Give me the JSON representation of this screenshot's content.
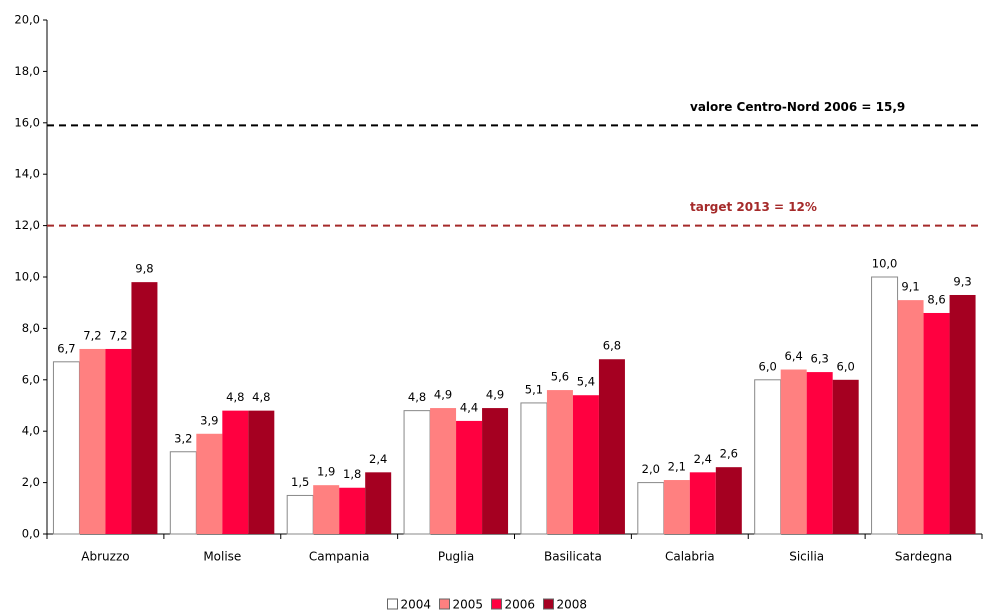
{
  "chart_data": {
    "type": "bar",
    "categories": [
      "Abruzzo",
      "Molise",
      "Campania",
      "Puglia",
      "Basilicata",
      "Calabria",
      "Sicilia",
      "Sardegna"
    ],
    "series": [
      {
        "name": "2004",
        "color": "#ffffff",
        "values": [
          6.7,
          3.2,
          1.5,
          4.8,
          5.1,
          2.0,
          6.0,
          10.0
        ],
        "value_labels": [
          "6,7",
          "3,2",
          "1,5",
          "4,8",
          "5,1",
          "2,0",
          "6,0",
          "10,0"
        ]
      },
      {
        "name": "2005",
        "color": "#ff8080",
        "values": [
          7.2,
          3.9,
          1.9,
          4.9,
          5.6,
          2.1,
          6.4,
          9.1
        ],
        "value_labels": [
          "7,2",
          "3,9",
          "1,9",
          "4,9",
          "5,6",
          "2,1",
          "6,4",
          "9,1"
        ]
      },
      {
        "name": "2006",
        "color": "#ff0040",
        "values": [
          7.2,
          4.8,
          1.8,
          4.4,
          5.4,
          2.4,
          6.3,
          8.6
        ],
        "value_labels": [
          "7,2",
          "4,8",
          "1,8",
          "4,4",
          "5,4",
          "2,4",
          "6,3",
          "8,6"
        ]
      },
      {
        "name": "2008",
        "color": "#a50021",
        "values": [
          9.8,
          4.8,
          2.4,
          4.9,
          6.8,
          2.6,
          6.0,
          9.3
        ],
        "value_labels": [
          "9,8",
          "4,8",
          "2,4",
          "4,9",
          "6,8",
          "2,6",
          "6,0",
          "9,3"
        ]
      }
    ],
    "ylim": [
      0,
      20
    ],
    "yticks": [
      {
        "value": 0,
        "label": "0,0"
      },
      {
        "value": 2,
        "label": "2,0"
      },
      {
        "value": 4,
        "label": "4,0"
      },
      {
        "value": 6,
        "label": "6,0"
      },
      {
        "value": 8,
        "label": "8,0"
      },
      {
        "value": 10,
        "label": "10,0"
      },
      {
        "value": 12,
        "label": "12,0"
      },
      {
        "value": 14,
        "label": "14,0"
      },
      {
        "value": 16,
        "label": "16,0"
      },
      {
        "value": 18,
        "label": "18,0"
      },
      {
        "value": 20,
        "label": "20,0"
      }
    ],
    "reference_lines": [
      {
        "label": "valore Centro-Nord 2006 = 15,9",
        "value": 15.9,
        "color": "#000000"
      },
      {
        "label": "target 2013 = 12%",
        "value": 12,
        "color": "#a52a2a"
      }
    ],
    "legend": "bottom"
  }
}
